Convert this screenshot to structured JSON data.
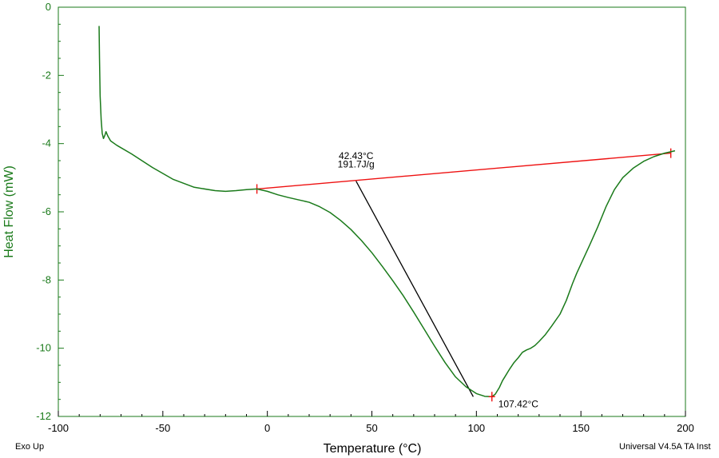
{
  "chart_data": {
    "type": "line",
    "xlabel": "Temperature (°C)",
    "ylabel": "Heat Flow (mW)",
    "xlim": [
      -100,
      200
    ],
    "ylim": [
      -12,
      0
    ],
    "xticks": [
      -100,
      -50,
      0,
      50,
      100,
      150,
      200
    ],
    "yticks": [
      0,
      -2,
      -4,
      -6,
      -8,
      -10,
      -12
    ],
    "footer_left": "Exo Up",
    "footer_right": "Universal V4.5A TA Inst",
    "colors": {
      "curve": "#1a7a1a",
      "baseline": "#ee1111",
      "tangent": "#000000",
      "frame": "#1a7a1a"
    },
    "series": [
      {
        "name": "Heat Flow",
        "points": [
          [
            -80.5,
            -0.55
          ],
          [
            -80.3,
            -1.5
          ],
          [
            -80.0,
            -2.6
          ],
          [
            -79.5,
            -3.3
          ],
          [
            -79.0,
            -3.7
          ],
          [
            -78.4,
            -3.85
          ],
          [
            -77.7,
            -3.75
          ],
          [
            -77.2,
            -3.65
          ],
          [
            -76.3,
            -3.78
          ],
          [
            -75.0,
            -3.92
          ],
          [
            -72.0,
            -4.05
          ],
          [
            -65.0,
            -4.3
          ],
          [
            -55.0,
            -4.7
          ],
          [
            -45.0,
            -5.05
          ],
          [
            -35.0,
            -5.28
          ],
          [
            -25.0,
            -5.38
          ],
          [
            -20.0,
            -5.4
          ],
          [
            -15.0,
            -5.38
          ],
          [
            -10.0,
            -5.35
          ],
          [
            -5.0,
            -5.33
          ],
          [
            0.0,
            -5.4
          ],
          [
            5.0,
            -5.5
          ],
          [
            10.0,
            -5.58
          ],
          [
            15.0,
            -5.65
          ],
          [
            20.0,
            -5.72
          ],
          [
            25.0,
            -5.85
          ],
          [
            30.0,
            -6.02
          ],
          [
            35.0,
            -6.25
          ],
          [
            40.0,
            -6.52
          ],
          [
            45.0,
            -6.84
          ],
          [
            50.0,
            -7.2
          ],
          [
            55.0,
            -7.6
          ],
          [
            60.0,
            -8.02
          ],
          [
            65.0,
            -8.46
          ],
          [
            70.0,
            -8.94
          ],
          [
            75.0,
            -9.44
          ],
          [
            80.0,
            -9.94
          ],
          [
            85.0,
            -10.42
          ],
          [
            90.0,
            -10.84
          ],
          [
            95.0,
            -11.13
          ],
          [
            100.0,
            -11.33
          ],
          [
            104.0,
            -11.41
          ],
          [
            107.4,
            -11.42
          ],
          [
            109.0,
            -11.35
          ],
          [
            111.0,
            -11.15
          ],
          [
            112.5,
            -10.95
          ],
          [
            114.0,
            -10.8
          ],
          [
            116.0,
            -10.6
          ],
          [
            118.0,
            -10.42
          ],
          [
            120.0,
            -10.28
          ],
          [
            122.0,
            -10.12
          ],
          [
            124.0,
            -10.05
          ],
          [
            126.0,
            -10.0
          ],
          [
            128.0,
            -9.92
          ],
          [
            130.0,
            -9.8
          ],
          [
            133.0,
            -9.6
          ],
          [
            136.0,
            -9.35
          ],
          [
            140.0,
            -9.0
          ],
          [
            143.0,
            -8.6
          ],
          [
            146.0,
            -8.1
          ],
          [
            148.0,
            -7.8
          ],
          [
            151.0,
            -7.4
          ],
          [
            154.0,
            -7.0
          ],
          [
            158.0,
            -6.45
          ],
          [
            162.0,
            -5.85
          ],
          [
            166.0,
            -5.35
          ],
          [
            170.0,
            -5.0
          ],
          [
            175.0,
            -4.72
          ],
          [
            180.0,
            -4.52
          ],
          [
            185.0,
            -4.38
          ],
          [
            190.0,
            -4.28
          ],
          [
            193.0,
            -4.24
          ],
          [
            195.0,
            -4.21
          ]
        ]
      }
    ],
    "baseline": {
      "from": [
        -5,
        -5.33
      ],
      "to": [
        193,
        -4.28
      ]
    },
    "tangent": {
      "from": [
        42.43,
        -5.1
      ],
      "to": [
        98.5,
        -11.42
      ]
    },
    "annotations": [
      {
        "text": "42.43°C",
        "x": 42.43,
        "y": -4.45
      },
      {
        "text": "191.7J/g",
        "x": 42.43,
        "y": -4.7
      },
      {
        "text": "107.42°C",
        "x": 107.42,
        "y": -11.42
      }
    ]
  }
}
